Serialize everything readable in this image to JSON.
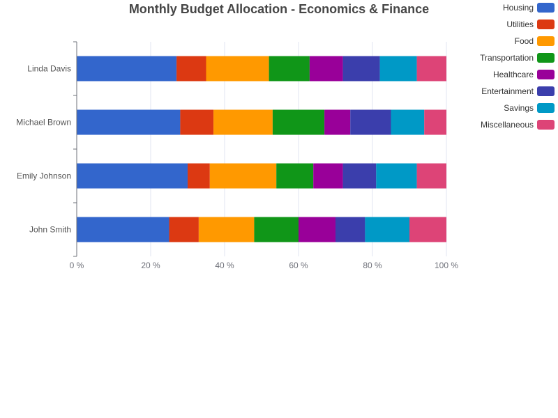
{
  "chart_data": {
    "type": "bar",
    "orientation": "horizontal",
    "stacked": true,
    "normalized": "percent",
    "title": "Monthly Budget Allocation - Economics & Finance",
    "xlabel": "",
    "ylabel": "",
    "xlim": [
      0,
      100
    ],
    "x_ticks": [
      0,
      20,
      40,
      60,
      80,
      100
    ],
    "x_tick_labels": [
      "0 %",
      "20 %",
      "40 %",
      "60 %",
      "80 %",
      "100 %"
    ],
    "categories": [
      "John Smith",
      "Emily Johnson",
      "Michael Brown",
      "Linda Davis"
    ],
    "grid": "vertical",
    "legend_position": "top-right",
    "series": [
      {
        "name": "Housing",
        "color": "#3366cc",
        "values": [
          25,
          30,
          28,
          27
        ]
      },
      {
        "name": "Utilities",
        "color": "#dc3912",
        "values": [
          8,
          6,
          9,
          8
        ]
      },
      {
        "name": "Food",
        "color": "#ff9900",
        "values": [
          15,
          18,
          16,
          17
        ]
      },
      {
        "name": "Transportation",
        "color": "#109618",
        "values": [
          12,
          10,
          14,
          11
        ]
      },
      {
        "name": "Healthcare",
        "color": "#990099",
        "values": [
          10,
          8,
          7,
          9
        ]
      },
      {
        "name": "Entertainment",
        "color": "#3b3eac",
        "values": [
          8,
          9,
          11,
          10
        ]
      },
      {
        "name": "Savings",
        "color": "#0099c6",
        "values": [
          12,
          11,
          9,
          10
        ]
      },
      {
        "name": "Miscellaneous",
        "color": "#dd4477",
        "values": [
          10,
          8,
          6,
          8
        ]
      }
    ]
  }
}
